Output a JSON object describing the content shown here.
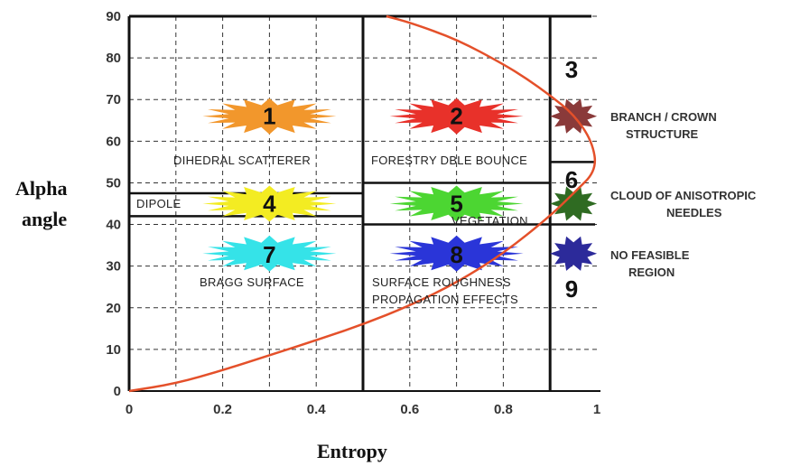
{
  "chart_data": {
    "type": "diagram",
    "xlabel": "Entropy",
    "ylabel_lines": [
      "Alpha",
      "angle"
    ],
    "xlim": [
      0,
      1
    ],
    "ylim": [
      0,
      90
    ],
    "x_ticks": [
      "0",
      "0.2",
      "0.4",
      "0.6",
      "0.8",
      "1"
    ],
    "x_tick_values": [
      0,
      0.2,
      0.4,
      0.6,
      0.8,
      1
    ],
    "y_ticks": [
      "0",
      "10",
      "20",
      "30",
      "40",
      "50",
      "60",
      "70",
      "80",
      "90"
    ],
    "y_tick_values": [
      0,
      10,
      20,
      30,
      40,
      50,
      60,
      70,
      80,
      90
    ],
    "boundary_x": [
      0.5,
      0.9
    ],
    "boundary_y_left": [
      42,
      47.5
    ],
    "boundary_y_mid": [
      40,
      50
    ],
    "boundary_y_right": [
      40,
      55
    ],
    "feasibility_curve": {
      "color": "#e4502a",
      "points": [
        [
          0,
          0
        ],
        [
          0.1,
          1.8
        ],
        [
          0.2,
          5
        ],
        [
          0.3,
          8.6
        ],
        [
          0.4,
          12.2
        ],
        [
          0.5,
          16
        ],
        [
          0.6,
          20.5
        ],
        [
          0.7,
          26
        ],
        [
          0.8,
          33
        ],
        [
          0.9,
          42
        ],
        [
          0.95,
          47.5
        ],
        [
          1.0,
          53
        ],
        [
          0.99,
          60
        ],
        [
          0.95,
          66.5
        ],
        [
          0.9,
          71
        ],
        [
          0.85,
          75
        ],
        [
          0.8,
          78.5
        ],
        [
          0.7,
          84.5
        ],
        [
          0.6,
          88.5
        ],
        [
          0.55,
          90
        ]
      ]
    },
    "zones": [
      {
        "id": "1",
        "label": "DIHEDRAL SCATTERER",
        "color": "#f2972c",
        "x": 0.3,
        "y": 66
      },
      {
        "id": "2",
        "label": "FORESTRY DBLE BOUNCE",
        "color": "#e8312a",
        "x": 0.7,
        "y": 66
      },
      {
        "id": "3",
        "label": "",
        "color": "#8a3a3a",
        "x": 0.95,
        "y": 66
      },
      {
        "id": "4",
        "label": "DIPOLE",
        "color": "#f3ec22",
        "x": 0.3,
        "y": 45
      },
      {
        "id": "5",
        "label": "VEGETATION",
        "color": "#4cd632",
        "x": 0.7,
        "y": 45
      },
      {
        "id": "6",
        "label": "",
        "color": "#2f6b22",
        "x": 0.95,
        "y": 45
      },
      {
        "id": "7",
        "label": "BRAGG SURFACE",
        "color": "#35e3e8",
        "x": 0.3,
        "y": 33
      },
      {
        "id": "8",
        "label": "SURFACE ROUGHNESS PROPAGATION EFFECTS",
        "color": "#2a35d8",
        "x": 0.7,
        "y": 33
      },
      {
        "id": "9",
        "label": "",
        "color": "#2c2a9a",
        "x": 0.95,
        "y": 33
      }
    ],
    "zone_label_lines": {
      "z8": [
        "SURFACE ROUGHNESS",
        "PROPAGATION EFFECTS"
      ]
    },
    "side_labels": [
      {
        "lines": [
          "BRANCH / CROWN",
          "STRUCTURE"
        ]
      },
      {
        "lines": [
          "CLOUD OF ANISOTROPIC",
          "NEEDLES"
        ]
      },
      {
        "lines": [
          "NO FEASIBLE",
          "REGION"
        ]
      }
    ]
  }
}
